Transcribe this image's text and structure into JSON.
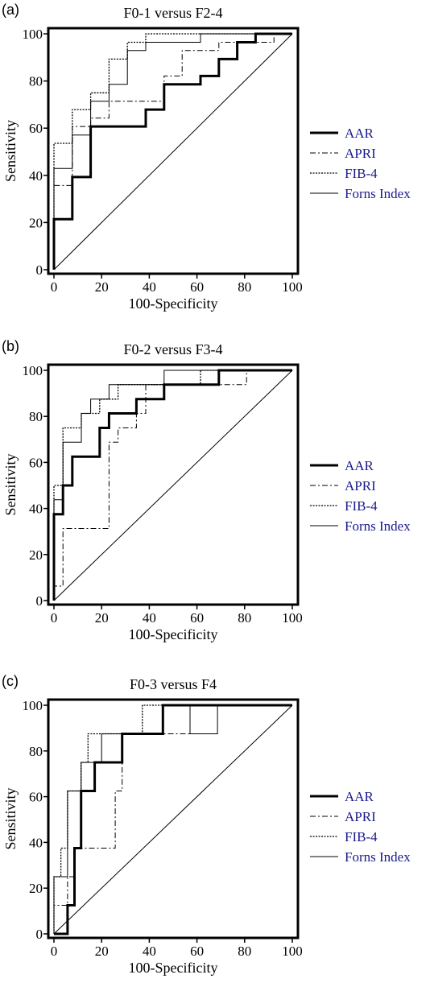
{
  "chart_data": [
    {
      "type": "line",
      "panel_label": "(a)",
      "title": "F0-1 versus F2-4",
      "xlabel": "100-Specificity",
      "ylabel": "Sensitivity",
      "xlim": [
        0,
        100
      ],
      "ylim": [
        0,
        100
      ],
      "x_ticks": [
        "0",
        "20",
        "40",
        "60",
        "80",
        "100"
      ],
      "y_ticks": [
        "0",
        "20",
        "40",
        "60",
        "80",
        "100"
      ],
      "legend_position": "right",
      "reference_line": [
        [
          0,
          0
        ],
        [
          100,
          100
        ]
      ],
      "series": [
        {
          "name": "AAR",
          "style": "thick-solid",
          "points": [
            [
              0,
              0
            ],
            [
              0,
              21.4
            ],
            [
              7.7,
              21.4
            ],
            [
              7.7,
              39.3
            ],
            [
              15.4,
              39.3
            ],
            [
              15.4,
              60.7
            ],
            [
              38.5,
              60.7
            ],
            [
              38.5,
              67.9
            ],
            [
              46.2,
              67.9
            ],
            [
              46.2,
              78.6
            ],
            [
              61.5,
              78.6
            ],
            [
              61.5,
              82.1
            ],
            [
              69.2,
              82.1
            ],
            [
              69.2,
              89.3
            ],
            [
              76.9,
              89.3
            ],
            [
              76.9,
              96.4
            ],
            [
              84.6,
              96.4
            ],
            [
              84.6,
              100
            ],
            [
              100,
              100
            ]
          ]
        },
        {
          "name": "APRI",
          "style": "dash-dot",
          "points": [
            [
              0,
              0
            ],
            [
              0,
              35.7
            ],
            [
              7.7,
              35.7
            ],
            [
              7.7,
              60.7
            ],
            [
              15.4,
              60.7
            ],
            [
              15.4,
              64.3
            ],
            [
              23.1,
              64.3
            ],
            [
              23.1,
              71.4
            ],
            [
              46.2,
              71.4
            ],
            [
              46.2,
              82.1
            ],
            [
              53.8,
              82.1
            ],
            [
              53.8,
              92.9
            ],
            [
              69.2,
              92.9
            ],
            [
              69.2,
              96.4
            ],
            [
              92.3,
              96.4
            ],
            [
              92.3,
              100
            ],
            [
              100,
              100
            ]
          ]
        },
        {
          "name": "FIB-4",
          "style": "dotted",
          "points": [
            [
              0,
              0
            ],
            [
              0,
              53.6
            ],
            [
              7.7,
              53.6
            ],
            [
              7.7,
              67.9
            ],
            [
              15.4,
              67.9
            ],
            [
              15.4,
              75.0
            ],
            [
              23.1,
              75.0
            ],
            [
              23.1,
              89.3
            ],
            [
              30.8,
              89.3
            ],
            [
              30.8,
              96.4
            ],
            [
              38.5,
              96.4
            ],
            [
              38.5,
              100
            ],
            [
              100,
              100
            ]
          ]
        },
        {
          "name": "Forns Index",
          "style": "thin-solid",
          "points": [
            [
              0,
              0
            ],
            [
              0,
              42.9
            ],
            [
              7.7,
              42.9
            ],
            [
              7.7,
              57.1
            ],
            [
              15.4,
              57.1
            ],
            [
              15.4,
              71.4
            ],
            [
              23.1,
              71.4
            ],
            [
              23.1,
              78.6
            ],
            [
              30.8,
              78.6
            ],
            [
              30.8,
              92.9
            ],
            [
              38.5,
              92.9
            ],
            [
              38.5,
              96.4
            ],
            [
              61.5,
              96.4
            ],
            [
              61.5,
              100
            ],
            [
              100,
              100
            ]
          ]
        }
      ]
    },
    {
      "type": "line",
      "panel_label": "(b)",
      "title": "F0-2 versus F3-4",
      "xlabel": "100-Specificity",
      "ylabel": "Sensitivity",
      "xlim": [
        0,
        100
      ],
      "ylim": [
        0,
        100
      ],
      "x_ticks": [
        "0",
        "20",
        "40",
        "60",
        "80",
        "100"
      ],
      "y_ticks": [
        "0",
        "20",
        "40",
        "60",
        "80",
        "100"
      ],
      "legend_position": "right",
      "reference_line": [
        [
          0,
          0
        ],
        [
          100,
          100
        ]
      ],
      "series": [
        {
          "name": "AAR",
          "style": "thick-solid",
          "points": [
            [
              0,
              0
            ],
            [
              0,
              37.5
            ],
            [
              3.8,
              37.5
            ],
            [
              3.8,
              50
            ],
            [
              7.7,
              50
            ],
            [
              7.7,
              62.5
            ],
            [
              19.2,
              62.5
            ],
            [
              19.2,
              75
            ],
            [
              23.1,
              75
            ],
            [
              23.1,
              81.3
            ],
            [
              34.6,
              81.3
            ],
            [
              34.6,
              87.5
            ],
            [
              46.2,
              87.5
            ],
            [
              46.2,
              93.8
            ],
            [
              69.2,
              93.8
            ],
            [
              69.2,
              100
            ],
            [
              100,
              100
            ]
          ]
        },
        {
          "name": "APRI",
          "style": "dash-dot",
          "points": [
            [
              0,
              0
            ],
            [
              0,
              6.3
            ],
            [
              3.8,
              6.3
            ],
            [
              3.8,
              31.3
            ],
            [
              23.1,
              31.3
            ],
            [
              23.1,
              68.8
            ],
            [
              26.9,
              68.8
            ],
            [
              26.9,
              75
            ],
            [
              34.6,
              75
            ],
            [
              34.6,
              81.3
            ],
            [
              38.5,
              81.3
            ],
            [
              38.5,
              93.8
            ],
            [
              80.8,
              93.8
            ],
            [
              80.8,
              100
            ],
            [
              100,
              100
            ]
          ]
        },
        {
          "name": "FIB-4",
          "style": "dotted",
          "points": [
            [
              0,
              0
            ],
            [
              0,
              50
            ],
            [
              3.8,
              50
            ],
            [
              3.8,
              75
            ],
            [
              11.5,
              75
            ],
            [
              11.5,
              81.3
            ],
            [
              19.2,
              81.3
            ],
            [
              19.2,
              87.5
            ],
            [
              26.9,
              87.5
            ],
            [
              26.9,
              93.8
            ],
            [
              61.5,
              93.8
            ],
            [
              61.5,
              100
            ],
            [
              100,
              100
            ]
          ]
        },
        {
          "name": "Forns Index",
          "style": "thin-solid",
          "points": [
            [
              0,
              0
            ],
            [
              0,
              43.8
            ],
            [
              3.8,
              43.8
            ],
            [
              3.8,
              68.8
            ],
            [
              11.5,
              68.8
            ],
            [
              11.5,
              81.3
            ],
            [
              15.4,
              81.3
            ],
            [
              15.4,
              87.5
            ],
            [
              23.1,
              87.5
            ],
            [
              23.1,
              93.8
            ],
            [
              46.2,
              93.8
            ],
            [
              46.2,
              100
            ],
            [
              100,
              100
            ]
          ]
        }
      ]
    },
    {
      "type": "line",
      "panel_label": "(c)",
      "title": "F0-3 versus F4",
      "xlabel": "100-Specificity",
      "ylabel": "Sensitivity",
      "xlim": [
        0,
        100
      ],
      "ylim": [
        0,
        100
      ],
      "x_ticks": [
        "0",
        "20",
        "40",
        "60",
        "80",
        "100"
      ],
      "y_ticks": [
        "0",
        "20",
        "40",
        "60",
        "80",
        "100"
      ],
      "legend_position": "right",
      "reference_line": [
        [
          0,
          0
        ],
        [
          100,
          100
        ]
      ],
      "series": [
        {
          "name": "AAR",
          "style": "thick-solid",
          "points": [
            [
              0,
              0
            ],
            [
              5.7,
              0
            ],
            [
              5.7,
              12.5
            ],
            [
              8.6,
              12.5
            ],
            [
              8.6,
              37.5
            ],
            [
              11.4,
              37.5
            ],
            [
              11.4,
              62.5
            ],
            [
              17.1,
              62.5
            ],
            [
              17.1,
              75
            ],
            [
              28.6,
              75
            ],
            [
              28.6,
              87.5
            ],
            [
              45.7,
              87.5
            ],
            [
              45.7,
              100
            ],
            [
              100,
              100
            ]
          ]
        },
        {
          "name": "APRI",
          "style": "dash-dot",
          "points": [
            [
              0,
              0
            ],
            [
              0,
              12.5
            ],
            [
              5.7,
              12.5
            ],
            [
              5.7,
              25
            ],
            [
              8.6,
              25
            ],
            [
              8.6,
              37.5
            ],
            [
              25.7,
              37.5
            ],
            [
              25.7,
              62.5
            ],
            [
              28.6,
              62.5
            ],
            [
              28.6,
              87.5
            ],
            [
              57.1,
              87.5
            ],
            [
              57.1,
              100
            ],
            [
              100,
              100
            ]
          ]
        },
        {
          "name": "FIB-4",
          "style": "dotted",
          "points": [
            [
              0,
              0
            ],
            [
              0,
              25
            ],
            [
              2.9,
              25
            ],
            [
              2.9,
              37.5
            ],
            [
              5.7,
              37.5
            ],
            [
              5.7,
              62.5
            ],
            [
              11.4,
              62.5
            ],
            [
              11.4,
              75
            ],
            [
              14.3,
              75
            ],
            [
              14.3,
              87.5
            ],
            [
              37.1,
              87.5
            ],
            [
              37.1,
              100
            ],
            [
              100,
              100
            ]
          ]
        },
        {
          "name": "Forns Index",
          "style": "thin-solid",
          "points": [
            [
              0,
              0
            ],
            [
              0,
              25
            ],
            [
              5.7,
              25
            ],
            [
              5.7,
              62.5
            ],
            [
              11.4,
              62.5
            ],
            [
              11.4,
              75
            ],
            [
              20,
              75
            ],
            [
              20,
              87.5
            ],
            [
              45.7,
              87.5
            ],
            [
              45.7,
              100
            ],
            [
              57.1,
              100
            ],
            [
              57.1,
              87.5
            ],
            [
              68.6,
              87.5
            ],
            [
              68.6,
              100
            ],
            [
              100,
              100
            ]
          ]
        }
      ]
    }
  ]
}
